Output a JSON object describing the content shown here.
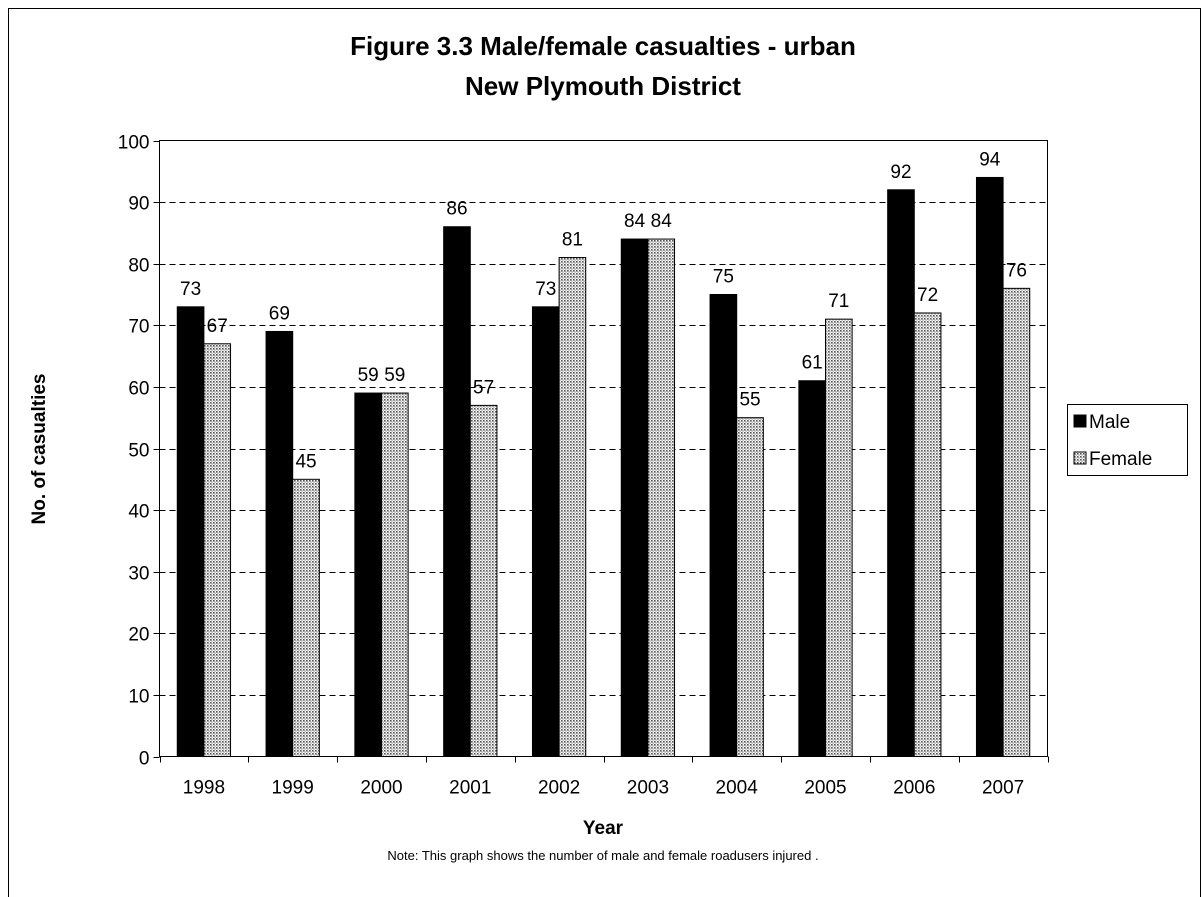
{
  "chart_data": {
    "type": "bar",
    "title": "Figure 3.3 Male/female casualties - urban",
    "subtitle": "New Plymouth District",
    "xlabel": "Year",
    "ylabel": "No. of casualties",
    "note": "Note: This graph shows the number of male and female roadusers injured .",
    "categories": [
      "1998",
      "1999",
      "2000",
      "2001",
      "2002",
      "2003",
      "2004",
      "2005",
      "2006",
      "2007"
    ],
    "ylim": [
      0,
      100
    ],
    "yticks": [
      0,
      10,
      20,
      30,
      40,
      50,
      60,
      70,
      80,
      90,
      100
    ],
    "grid": true,
    "legend_position": "right",
    "series": [
      {
        "name": "Male",
        "values": [
          73,
          69,
          59,
          86,
          73,
          84,
          75,
          61,
          92,
          94
        ],
        "color": "#000000",
        "pattern": "solid"
      },
      {
        "name": "Female",
        "values": [
          67,
          45,
          59,
          57,
          81,
          84,
          55,
          71,
          72,
          76
        ],
        "color": "#c8c8c8",
        "pattern": "dotted"
      }
    ]
  }
}
